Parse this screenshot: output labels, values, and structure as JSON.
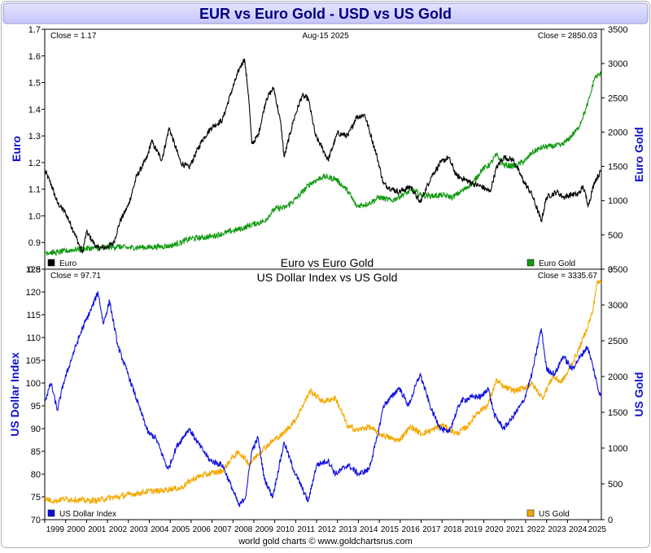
{
  "title": "EUR vs Euro Gold - USD vs US Gold",
  "footer": "world gold charts © www.goldchartsrus.com",
  "colors": {
    "title_bg": "#d4d4ff",
    "title_text": "#000080",
    "axis_label": "#1010d0",
    "euro": "#000000",
    "euro_gold": "#119911",
    "usd_index": "#1111dd",
    "us_gold": "#f5a800"
  },
  "chart_data": [
    {
      "type": "line",
      "title": "Euro vs Euro Gold",
      "date_label": "Aug-15  2025",
      "left_close": "Close = 1.17",
      "right_close": "Close = 2850.03",
      "ylabel_left": "Euro",
      "ylabel_right": "Euro Gold",
      "ylim_left": [
        0.8,
        1.7
      ],
      "ylim_right": [
        0,
        3500
      ],
      "yticks_left": [
        "0.8",
        "0.9",
        "1.0",
        "1.1",
        "1.2",
        "1.3",
        "1.4",
        "1.5",
        "1.6",
        "1.7"
      ],
      "yticks_right": [
        "0",
        "500",
        "1000",
        "1500",
        "2000",
        "2500",
        "3000",
        "3500"
      ],
      "xlim": [
        1999.0,
        2025.62
      ],
      "legend": "bottom",
      "series": [
        {
          "name": "Euro",
          "axis": "left",
          "x": [
            1999.0,
            1999.3,
            1999.6,
            2000.0,
            2000.4,
            2000.8,
            2001.0,
            2001.5,
            2001.9,
            2002.3,
            2002.6,
            2003.0,
            2003.4,
            2003.9,
            2004.1,
            2004.6,
            2004.95,
            2005.5,
            2005.9,
            2006.5,
            2006.95,
            2007.5,
            2007.9,
            2008.3,
            2008.55,
            2008.75,
            2008.9,
            2009.2,
            2009.6,
            2009.95,
            2010.3,
            2010.45,
            2010.9,
            2011.3,
            2011.6,
            2011.95,
            2012.3,
            2012.55,
            2013.0,
            2013.5,
            2013.9,
            2014.3,
            2014.6,
            2014.9,
            2015.2,
            2015.6,
            2015.95,
            2016.5,
            2016.95,
            2017.5,
            2017.95,
            2018.3,
            2018.7,
            2019.0,
            2019.5,
            2019.9,
            2020.3,
            2020.6,
            2020.95,
            2021.4,
            2021.9,
            2022.3,
            2022.75,
            2023.0,
            2023.5,
            2023.8,
            2024.2,
            2024.5,
            2024.75,
            2025.0,
            2025.3,
            2025.62
          ],
          "values": [
            1.17,
            1.12,
            1.05,
            1.01,
            0.94,
            0.86,
            0.94,
            0.88,
            0.88,
            0.9,
            0.98,
            1.04,
            1.15,
            1.22,
            1.28,
            1.21,
            1.33,
            1.2,
            1.18,
            1.28,
            1.33,
            1.36,
            1.46,
            1.55,
            1.59,
            1.45,
            1.27,
            1.3,
            1.44,
            1.48,
            1.34,
            1.22,
            1.36,
            1.45,
            1.44,
            1.3,
            1.25,
            1.21,
            1.31,
            1.3,
            1.37,
            1.38,
            1.3,
            1.22,
            1.12,
            1.1,
            1.09,
            1.11,
            1.05,
            1.15,
            1.2,
            1.22,
            1.15,
            1.14,
            1.12,
            1.11,
            1.09,
            1.18,
            1.22,
            1.21,
            1.13,
            1.08,
            0.98,
            1.07,
            1.09,
            1.07,
            1.08,
            1.08,
            1.11,
            1.04,
            1.13,
            1.17
          ]
        },
        {
          "name": "Euro Gold",
          "axis": "right",
          "x": [
            1999.0,
            1999.5,
            1999.9,
            2000.5,
            2001.0,
            2001.5,
            2002.0,
            2002.5,
            2003.0,
            2003.5,
            2004.0,
            2004.5,
            2005.0,
            2005.5,
            2006.0,
            2006.5,
            2007.0,
            2007.5,
            2008.0,
            2008.5,
            2008.9,
            2009.5,
            2010.0,
            2010.5,
            2011.0,
            2011.7,
            2012.3,
            2012.9,
            2013.5,
            2013.9,
            2014.5,
            2015.0,
            2015.6,
            2016.2,
            2016.6,
            2017.0,
            2017.5,
            2018.0,
            2018.5,
            2019.0,
            2019.5,
            2019.9,
            2020.3,
            2020.6,
            2020.95,
            2021.5,
            2022.0,
            2022.3,
            2022.8,
            2023.2,
            2023.7,
            2024.0,
            2024.5,
            2024.9,
            2025.1,
            2025.3,
            2025.62
          ],
          "values": [
            250,
            240,
            260,
            290,
            300,
            310,
            320,
            330,
            310,
            320,
            320,
            330,
            340,
            390,
            450,
            460,
            480,
            520,
            560,
            600,
            650,
            700,
            880,
            900,
            1020,
            1250,
            1350,
            1320,
            1140,
            920,
            960,
            1050,
            1000,
            1100,
            1150,
            1080,
            1070,
            1080,
            1050,
            1150,
            1270,
            1450,
            1530,
            1670,
            1520,
            1500,
            1590,
            1700,
            1780,
            1790,
            1810,
            1880,
            2050,
            2350,
            2550,
            2800,
            2850
          ]
        }
      ]
    },
    {
      "type": "line",
      "title": "US Dollar Index vs US Gold",
      "left_close": "Close = 97.71",
      "right_close": "Close = 3335.67",
      "ylabel_left": "US Dollar Index",
      "ylabel_right": "US Gold",
      "ylim_left": [
        70,
        125
      ],
      "ylim_right": [
        0,
        3500
      ],
      "yticks_left": [
        "70",
        "75",
        "80",
        "85",
        "90",
        "95",
        "100",
        "105",
        "110",
        "115",
        "120",
        "125"
      ],
      "yticks_right": [
        "0",
        "500",
        "1000",
        "1500",
        "2000",
        "2500",
        "3000",
        "3500"
      ],
      "xlim": [
        1999.0,
        2025.62
      ],
      "xticks": [
        "1999",
        "2000",
        "2001",
        "2002",
        "2003",
        "2004",
        "2005",
        "2006",
        "2007",
        "2008",
        "2009",
        "2010",
        "2011",
        "2012",
        "2013",
        "2014",
        "2015",
        "2016",
        "2017",
        "2018",
        "2019",
        "2020",
        "2021",
        "2022",
        "2023",
        "2024",
        "2025"
      ],
      "legend": "bottom",
      "series": [
        {
          "name": "US Dollar Index",
          "axis": "left",
          "x": [
            1999.0,
            1999.3,
            1999.6,
            1999.9,
            2000.4,
            2000.8,
            2001.2,
            2001.55,
            2001.8,
            2002.1,
            2002.5,
            2002.9,
            2003.5,
            2003.95,
            2004.3,
            2004.9,
            2005.3,
            2005.9,
            2006.3,
            2006.9,
            2007.5,
            2007.95,
            2008.3,
            2008.6,
            2008.9,
            2009.2,
            2009.5,
            2009.9,
            2010.45,
            2010.9,
            2011.3,
            2011.6,
            2012.0,
            2012.55,
            2012.9,
            2013.5,
            2014.0,
            2014.5,
            2014.9,
            2015.2,
            2015.6,
            2015.95,
            2016.4,
            2016.95,
            2017.5,
            2017.95,
            2018.3,
            2018.9,
            2019.5,
            2019.9,
            2020.2,
            2020.5,
            2020.95,
            2021.3,
            2021.9,
            2022.3,
            2022.75,
            2023.0,
            2023.4,
            2023.8,
            2024.2,
            2024.5,
            2024.95,
            2025.2,
            2025.5,
            2025.62
          ],
          "values": [
            96,
            100,
            94,
            100,
            107,
            112,
            116,
            120,
            113,
            118,
            108,
            103,
            95,
            89,
            88,
            81,
            86,
            90,
            87,
            83,
            82,
            77,
            73,
            75,
            85,
            88,
            79,
            75,
            87,
            81,
            77,
            74,
            82,
            83,
            80,
            82,
            80,
            81,
            88,
            95,
            97,
            99,
            95,
            102,
            94,
            90,
            89,
            96,
            97,
            97,
            99,
            93,
            90,
            92,
            96,
            102,
            112,
            103,
            102,
            106,
            103,
            105,
            108,
            104,
            98,
            97.71
          ]
        },
        {
          "name": "US Gold",
          "axis": "right",
          "x": [
            1999.0,
            1999.5,
            1999.9,
            2000.5,
            2001.0,
            2001.5,
            2002.0,
            2002.5,
            2003.0,
            2003.5,
            2004.0,
            2004.5,
            2005.0,
            2005.5,
            2006.0,
            2006.5,
            2007.0,
            2007.5,
            2008.0,
            2008.3,
            2008.8,
            2009.3,
            2009.9,
            2010.4,
            2011.0,
            2011.7,
            2012.3,
            2012.9,
            2013.5,
            2013.95,
            2014.5,
            2015.0,
            2015.9,
            2016.5,
            2017.0,
            2017.5,
            2018.0,
            2018.7,
            2019.2,
            2019.7,
            2020.2,
            2020.6,
            2020.95,
            2021.5,
            2022.0,
            2022.3,
            2022.8,
            2023.3,
            2023.7,
            2024.0,
            2024.5,
            2024.9,
            2025.2,
            2025.4,
            2025.62
          ],
          "values": [
            290,
            260,
            290,
            280,
            265,
            270,
            300,
            315,
            350,
            370,
            400,
            400,
            430,
            440,
            550,
            620,
            650,
            680,
            880,
            940,
            780,
            950,
            1100,
            1200,
            1400,
            1800,
            1650,
            1700,
            1300,
            1250,
            1300,
            1200,
            1100,
            1300,
            1200,
            1250,
            1320,
            1200,
            1300,
            1500,
            1600,
            1950,
            1850,
            1800,
            1850,
            1900,
            1700,
            2000,
            1920,
            2050,
            2350,
            2650,
            2900,
            3300,
            3335.67
          ]
        }
      ]
    }
  ]
}
